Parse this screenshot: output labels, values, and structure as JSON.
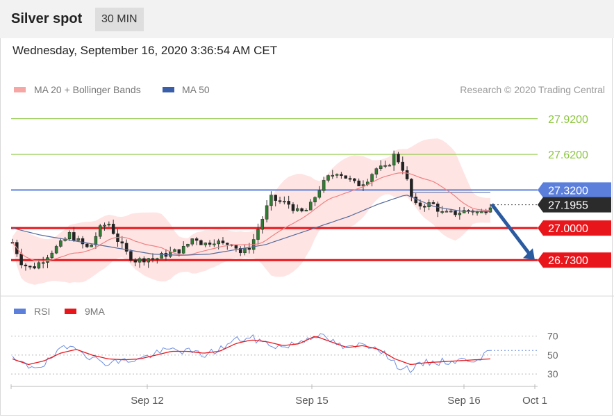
{
  "header": {
    "title": "Silver spot",
    "interval": "30 MIN"
  },
  "datetime": "Wednesday, September 16, 2020 3:36:54 AM CET",
  "legend": {
    "item1": "MA 20 + Bollinger Bands",
    "item2": "MA 50",
    "copyright": "Research © 2020 Trading Central"
  },
  "colors": {
    "resistance_green": "#8cc63f",
    "resistance_blue": "#5b7fdb",
    "support_red": "#e8161b",
    "bollinger": "#ffcdcd",
    "ma20": "#f08080",
    "ma50": "#556b9a",
    "arrow": "#2a5aa0",
    "rsi": "#6e8fe0",
    "rsi_ma": "#e8161b",
    "candle_body": "#2e7d32"
  },
  "chart_data": [
    {
      "type": "candlestick",
      "title": "Silver spot",
      "ylim": [
        26.55,
        28.1
      ],
      "x_tick_labels": [
        "Sep 12",
        "Sep 15",
        "Sep 16",
        "Oct 1"
      ],
      "last_price": "27.1955",
      "levels": [
        {
          "value": 27.92,
          "label": "27.9200",
          "kind": "resistance"
        },
        {
          "value": 27.62,
          "label": "27.6200",
          "kind": "resistance"
        },
        {
          "value": 27.32,
          "label": "27.3200",
          "kind": "pivot"
        },
        {
          "value": 27.0,
          "label": "27.0000",
          "kind": "support"
        },
        {
          "value": 26.73,
          "label": "26.7300",
          "kind": "support"
        }
      ],
      "price_path": [
        26.88,
        26.7,
        26.66,
        26.72,
        26.8,
        26.86,
        26.95,
        26.88,
        26.82,
        26.98,
        27.05,
        26.9,
        26.78,
        26.72,
        26.75,
        26.74,
        26.78,
        26.8,
        26.83,
        26.93,
        26.86,
        26.9,
        26.86,
        26.88,
        26.78,
        26.86,
        27.05,
        27.25,
        27.22,
        27.2,
        27.12,
        27.16,
        27.32,
        27.42,
        27.48,
        27.42,
        27.36,
        27.4,
        27.5,
        27.5,
        27.62,
        27.48,
        27.18,
        27.2,
        27.2,
        27.12,
        27.12,
        27.14,
        27.15,
        27.12,
        27.2
      ],
      "ma50_path": [
        27.0,
        26.94,
        26.9,
        26.86,
        26.82,
        26.78,
        26.77,
        26.78,
        26.82,
        26.86,
        26.94,
        27.02,
        27.1,
        27.2,
        27.28,
        27.18,
        27.14,
        27.14
      ],
      "forecast": {
        "from": 27.2,
        "to": 26.73
      }
    },
    {
      "type": "line",
      "title": "RSI",
      "series": [
        {
          "name": "RSI",
          "values": [
            45,
            38,
            40,
            55,
            60,
            46,
            42,
            44,
            46,
            52,
            56,
            54,
            50,
            56,
            66,
            68,
            62,
            58,
            64,
            72,
            65,
            56,
            62,
            58,
            40,
            35,
            42,
            43,
            44,
            46,
            52
          ]
        },
        {
          "name": "9MA",
          "values": [
            46,
            40,
            44,
            52,
            56,
            50,
            46,
            45,
            46,
            50,
            54,
            54,
            52,
            54,
            62,
            66,
            64,
            60,
            62,
            70,
            64,
            58,
            60,
            56,
            46,
            40,
            42,
            43,
            44,
            45,
            46
          ]
        }
      ],
      "ylim": [
        25,
        80
      ],
      "y_tick_labels": [
        "70",
        "50",
        "30"
      ]
    }
  ]
}
